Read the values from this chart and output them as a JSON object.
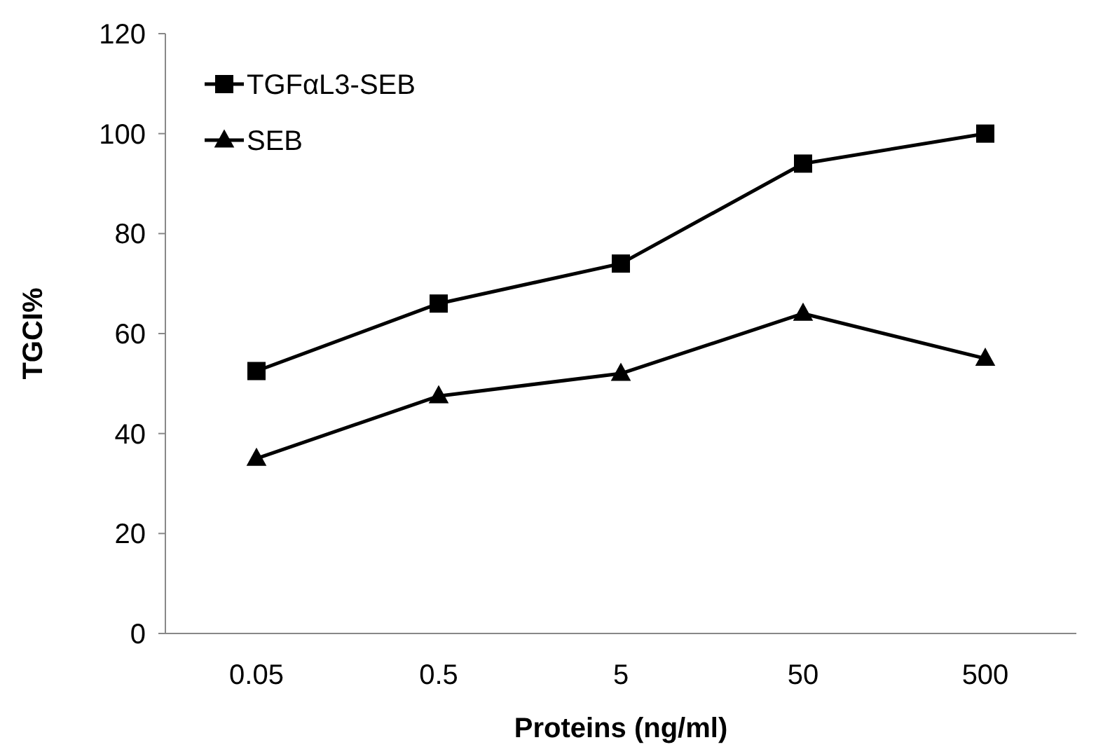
{
  "chart_data": {
    "type": "line",
    "xlabel": "Proteins (ng/ml)",
    "ylabel": "TGCI%",
    "categories": [
      "0.05",
      "0.5",
      "5",
      "50",
      "500"
    ],
    "series": [
      {
        "name": "TGFαL3-SEB",
        "color": "#000000",
        "marker": "square",
        "values": [
          52.5,
          66,
          74,
          94,
          100
        ]
      },
      {
        "name": "SEB",
        "color": "#000000",
        "marker": "triangle",
        "values": [
          35,
          47.5,
          52,
          64,
          55
        ]
      }
    ],
    "ylim": [
      0,
      120
    ],
    "yticks": [
      0,
      20,
      40,
      60,
      80,
      100,
      120
    ],
    "grid": false,
    "legend": "top left",
    "line_style": "solid"
  }
}
